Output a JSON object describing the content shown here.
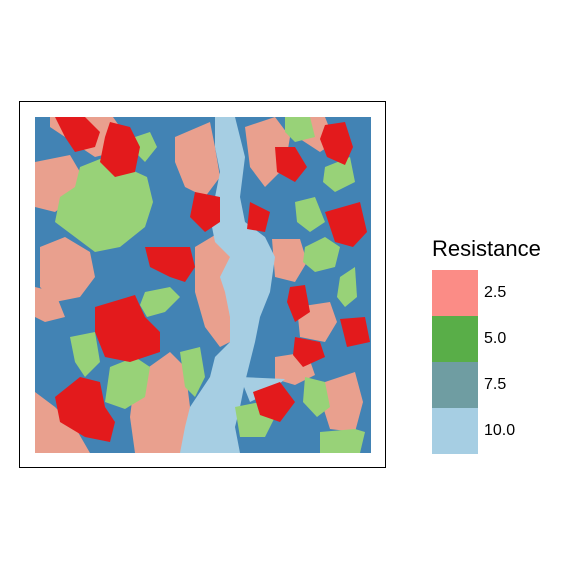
{
  "map": {
    "legend_title": "Resistance",
    "legend": [
      {
        "label": "2.5",
        "color": "#fb8c86"
      },
      {
        "label": "5.0",
        "color": "#59ae48"
      },
      {
        "label": "7.5",
        "color": "#6f9da2"
      },
      {
        "label": "10.0",
        "color": "#a6cee3"
      }
    ],
    "palette": {
      "dark_blue": "#4283b4",
      "light_blue": "#a6cee3",
      "salmon": "#e9a08e",
      "red": "#e31a1c",
      "light_green": "#98d278"
    }
  }
}
